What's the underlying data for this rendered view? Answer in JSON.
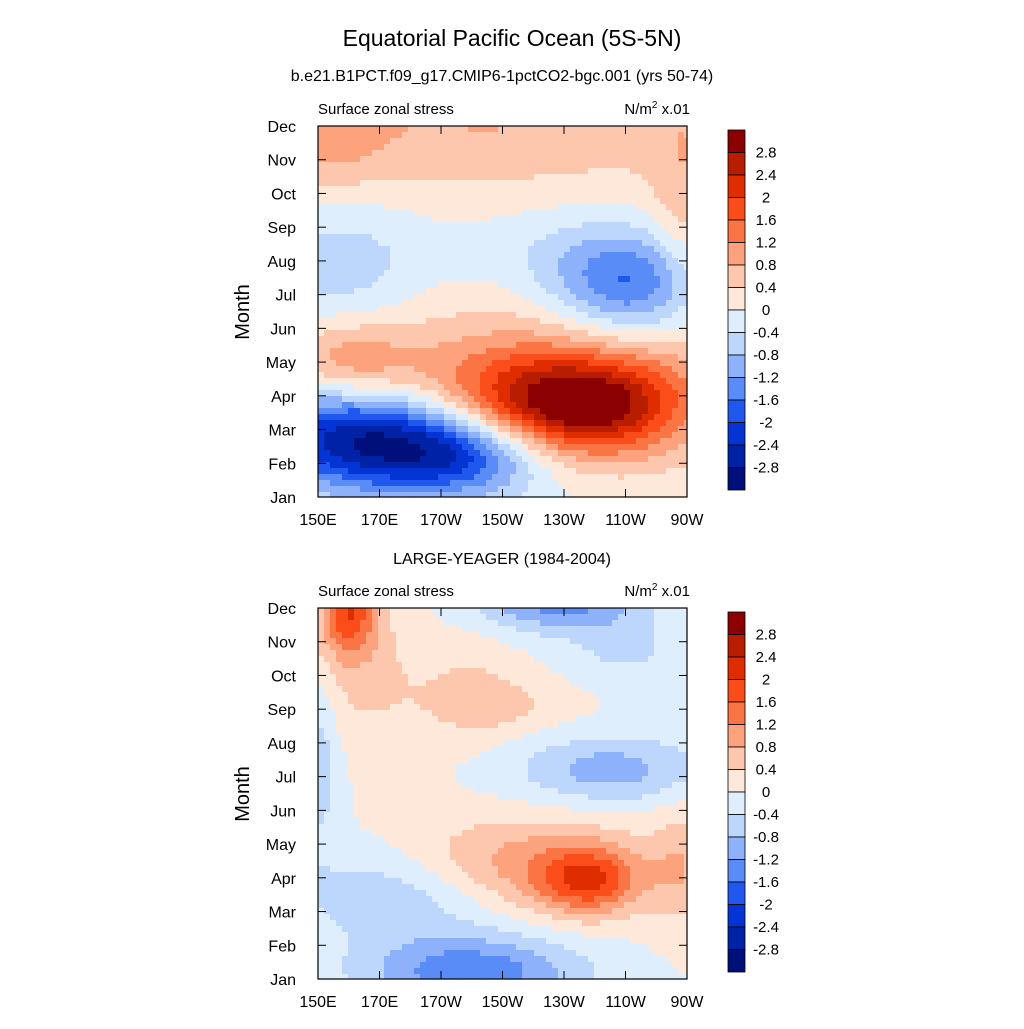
{
  "title": "Equatorial Pacific Ocean (5S-5N)",
  "panels": [
    {
      "subtitle": "b.e21.B1PCT.f09_g17.CMIP6-1pctCO2-bgc.001 (yrs 50-74)",
      "left_label": "Surface zonal stress",
      "unit_base": "N/m",
      "unit_sup": "2",
      "unit_scale": " x.01",
      "ylabel": "Month",
      "features": [
        {
          "lon": 160,
          "mon": 7.8,
          "sx": 30,
          "sy": 1.9,
          "a": -0.8,
          "rot": 0
        },
        {
          "lon": 215,
          "mon": 7.3,
          "sx": 55,
          "sy": 2.6,
          "a": 0.8,
          "rot": 0
        },
        {
          "lon": 228,
          "mon": 3.7,
          "sx": 38,
          "sy": 1.6,
          "a": 2.7,
          "rot": -0.05
        },
        {
          "lon": 160,
          "mon": 5.0,
          "sx": 22,
          "sy": 1.2,
          "a": 1.0,
          "rot": 0
        },
        {
          "lon": 250,
          "mon": 4.4,
          "sx": 32,
          "sy": 1.3,
          "a": 0.8,
          "rot": 0
        },
        {
          "lon": 240,
          "mon": 3.6,
          "sx": 22,
          "sy": 1.0,
          "a": 0.5,
          "rot": 0
        },
        {
          "lon": 170,
          "mon": 2.6,
          "sx": 40,
          "sy": 1.5,
          "a": -3.0,
          "rot": -0.04
        },
        {
          "lon": 200,
          "mon": 2.2,
          "sx": 22,
          "sy": 1.0,
          "a": -0.8,
          "rot": 0
        },
        {
          "lon": 225,
          "mon": 8.0,
          "sx": 40,
          "sy": 1.7,
          "a": -1.0,
          "rot": 0
        },
        {
          "lon": 252,
          "mon": 7.3,
          "sx": 24,
          "sy": 1.5,
          "a": -1.6,
          "rot": 0
        },
        {
          "lon": 205,
          "mon": 12.3,
          "sx": 90,
          "sy": 2.0,
          "a": 0.8,
          "rot": 0
        },
        {
          "lon": 150,
          "mon": 11.1,
          "sx": 25,
          "sy": 1.1,
          "a": 0.5,
          "rot": 0
        },
        {
          "lon": 270,
          "mon": 9.5,
          "sx": 12,
          "sy": 3.0,
          "a": 0.6,
          "rot": 0
        }
      ]
    },
    {
      "subtitle": "LARGE-YEAGER (1984-2004)",
      "left_label": "Surface zonal stress",
      "unit_base": "N/m",
      "unit_sup": "2",
      "unit_scale": " x.01",
      "ylabel": "Month",
      "features": [
        {
          "lon": 160,
          "mon": 11.9,
          "sx": 9,
          "sy": 1.3,
          "a": 1.8,
          "rot": 0
        },
        {
          "lon": 165,
          "mon": 10.0,
          "sx": 20,
          "sy": 2.2,
          "a": 0.5,
          "rot": 0
        },
        {
          "lon": 200,
          "mon": 9.6,
          "sx": 16,
          "sy": 1.6,
          "a": 0.4,
          "rot": 0
        },
        {
          "lon": 210,
          "mon": 9.1,
          "sx": 22,
          "sy": 0.8,
          "a": 0.4,
          "rot": 0
        },
        {
          "lon": 228,
          "mon": 12.2,
          "sx": 26,
          "sy": 0.9,
          "a": -1.4,
          "rot": 0
        },
        {
          "lon": 250,
          "mon": 10.8,
          "sx": 18,
          "sy": 1.0,
          "a": -0.5,
          "rot": 0
        },
        {
          "lon": 245,
          "mon": 7.2,
          "sx": 30,
          "sy": 1.0,
          "a": -1.0,
          "rot": 0
        },
        {
          "lon": 150,
          "mon": 7.5,
          "sx": 7,
          "sy": 2.5,
          "a": -0.7,
          "rot": 0
        },
        {
          "lon": 215,
          "mon": 4.3,
          "sx": 40,
          "sy": 1.4,
          "a": 1.2,
          "rot": 0
        },
        {
          "lon": 238,
          "mon": 3.9,
          "sx": 16,
          "sy": 1.0,
          "a": 1.5,
          "rot": 0
        },
        {
          "lon": 180,
          "mon": 3.6,
          "sx": 36,
          "sy": 1.4,
          "a": -0.9,
          "rot": 0
        },
        {
          "lon": 200,
          "mon": 1.2,
          "sx": 35,
          "sy": 1.1,
          "a": -1.5,
          "rot": 0
        },
        {
          "lon": 268,
          "mon": 4.3,
          "sx": 10,
          "sy": 1.8,
          "a": 0.6,
          "rot": 0
        }
      ]
    }
  ],
  "colorbar": {
    "labels": [
      "2.8",
      "2.4",
      "2",
      "1.6",
      "1.2",
      "0.8",
      "0.4",
      "0",
      "-0.4",
      "-0.8",
      "-1.2",
      "-1.6",
      "-2",
      "-2.4",
      "-2.8"
    ],
    "colors_top_to_bottom": [
      "#8b0000",
      "#b81d00",
      "#df2d00",
      "#fa4d1a",
      "#fa7543",
      "#fca37e",
      "#fdc7ad",
      "#fee8d9",
      "#deeefc",
      "#bdd7fc",
      "#8db1fa",
      "#5a8cf7",
      "#2057ee",
      "#0435d4",
      "#0022a6",
      "#00107a"
    ]
  },
  "chart_data": {
    "type": "heatmap",
    "title": "Equatorial Pacific Ocean (5S-5N)",
    "panels": [
      {
        "subtitle": "b.e21.B1PCT.f09_g17.CMIP6-1pctCO2-bgc.001 (yrs 50-74)",
        "variable": "Surface zonal stress",
        "units": "N/m2 x.01"
      },
      {
        "subtitle": "LARGE-YEAGER (1984-2004)",
        "variable": "Surface zonal stress",
        "units": "N/m2 x.01"
      }
    ],
    "xlabel": "",
    "ylabel": "Month",
    "x_ticks": [
      "150E",
      "170E",
      "170W",
      "150W",
      "130W",
      "110W",
      "90W"
    ],
    "x_tick_lon": [
      150,
      170,
      190,
      210,
      230,
      250,
      270
    ],
    "xlim": [
      150,
      270
    ],
    "y_ticks": [
      "Jan",
      "Feb",
      "Mar",
      "Apr",
      "May",
      "Jun",
      "Jul",
      "Aug",
      "Sep",
      "Oct",
      "Nov",
      "Dec"
    ],
    "ylim": [
      1,
      12
    ],
    "contour_levels": [
      -2.8,
      -2.4,
      -2,
      -1.6,
      -1.2,
      -0.8,
      -0.4,
      0,
      0.4,
      0.8,
      1.2,
      1.6,
      2,
      2.4,
      2.8
    ]
  }
}
